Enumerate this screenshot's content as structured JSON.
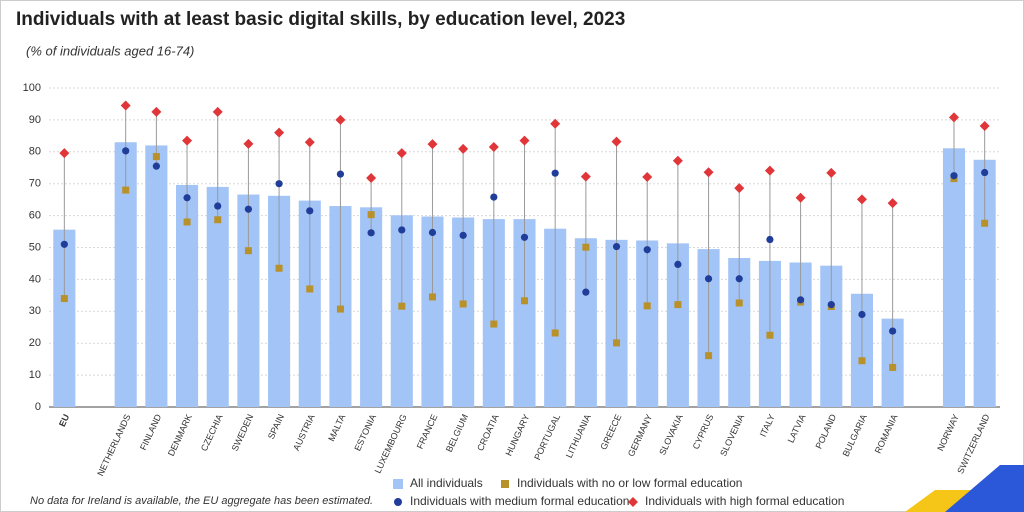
{
  "chart_data": {
    "type": "bar-dot",
    "title": "Individuals with at least basic digital skills, by education level, 2023",
    "subtitle": "(% of individuals aged 16-74)",
    "note": "No data for Ireland is available, the EU aggregate has been estimated.",
    "categories": [
      "EU",
      null,
      "NETHERLANDS",
      "FINLAND",
      "DENMARK",
      "CZECHIA",
      "SWEDEN",
      "SPAIN",
      "AUSTRIA",
      "MALTA",
      "ESTONIA",
      "LUXEMBOURG",
      "FRANCE",
      "BELGIUM",
      "CROATIA",
      "HUNGARY",
      "PORTUGAL",
      "LITHUANIA",
      "GREECE",
      "GERMANY",
      "SLOVAKIA",
      "CYPRUS",
      "SLOVENIA",
      "ITALY",
      "LATVIA",
      "POLAND",
      "BULGARIA",
      "ROMANIA",
      null,
      "NORWAY",
      "SWITZERLAND"
    ],
    "series": [
      {
        "name": "All individuals",
        "color": "#a3c4f6",
        "mark": "bar",
        "values": [
          55.6,
          null,
          83.0,
          82.0,
          69.6,
          69.0,
          66.6,
          66.2,
          64.7,
          63.0,
          62.6,
          60.1,
          59.7,
          59.4,
          58.9,
          58.9,
          55.9,
          52.9,
          52.4,
          52.2,
          51.3,
          49.5,
          46.7,
          45.8,
          45.3,
          44.3,
          35.5,
          27.7,
          null,
          81.1,
          77.5
        ]
      },
      {
        "name": "Individuals with no or low formal education",
        "color": "#b8912a",
        "mark": "square",
        "values": [
          34.0,
          null,
          68.0,
          78.5,
          58.0,
          58.7,
          49.0,
          43.5,
          37.0,
          30.7,
          60.3,
          31.6,
          34.5,
          32.3,
          26.0,
          33.3,
          23.2,
          50.1,
          20.1,
          31.7,
          32.1,
          16.1,
          32.6,
          22.5,
          32.9,
          31.5,
          14.5,
          12.4,
          null,
          71.6,
          57.6
        ]
      },
      {
        "name": "Individuals with medium formal education",
        "color": "#1f3d99",
        "mark": "circle",
        "values": [
          51.0,
          null,
          80.3,
          75.5,
          65.6,
          63.0,
          62.0,
          70.0,
          61.5,
          73.0,
          54.6,
          55.5,
          54.7,
          53.8,
          65.8,
          53.2,
          73.3,
          36.0,
          50.3,
          49.3,
          44.7,
          40.2,
          40.2,
          52.5,
          33.6,
          32.1,
          29.0,
          23.8,
          null,
          72.5,
          73.5
        ]
      },
      {
        "name": "Individuals with high formal education",
        "color": "#e0363a",
        "mark": "diamond",
        "values": [
          79.6,
          null,
          94.5,
          92.5,
          83.5,
          92.5,
          82.5,
          86.0,
          83.0,
          90.0,
          71.8,
          79.6,
          82.4,
          80.9,
          81.5,
          83.5,
          88.8,
          72.2,
          83.2,
          72.1,
          77.2,
          73.6,
          68.6,
          74.1,
          65.6,
          73.4,
          65.1,
          63.9,
          null,
          90.8,
          88.1
        ]
      }
    ],
    "ylim": [
      0,
      100
    ],
    "yticks": [
      0,
      10,
      20,
      30,
      40,
      50,
      60,
      70,
      80,
      90,
      100
    ],
    "grid": true
  }
}
